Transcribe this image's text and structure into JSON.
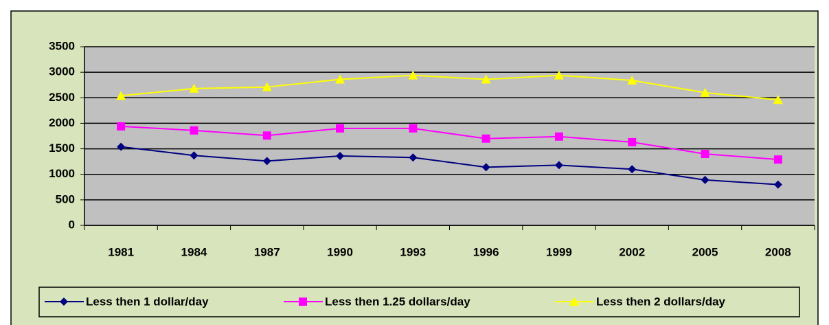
{
  "chart_data": {
    "type": "line",
    "categories": [
      "1981",
      "1984",
      "1987",
      "1990",
      "1993",
      "1996",
      "1999",
      "2002",
      "2005",
      "2008"
    ],
    "series": [
      {
        "name": "Less then 1 dollar/day",
        "color": "#000080",
        "marker": "diamond",
        "values": [
          1540,
          1370,
          1260,
          1360,
          1330,
          1140,
          1180,
          1100,
          890,
          800
        ]
      },
      {
        "name": "Less then 1.25 dollars/day",
        "color": "#ff00ff",
        "marker": "square",
        "values": [
          1940,
          1860,
          1760,
          1900,
          1900,
          1700,
          1740,
          1630,
          1400,
          1290
        ]
      },
      {
        "name": "Less then 2 dollars/day",
        "color": "#ffff00",
        "marker": "triangle",
        "values": [
          2540,
          2680,
          2710,
          2860,
          2940,
          2860,
          2940,
          2840,
          2600,
          2460
        ]
      }
    ],
    "ylim": [
      0,
      3500
    ],
    "yticks": [
      0,
      500,
      1000,
      1500,
      2000,
      2500,
      3000,
      3500
    ],
    "grid": true,
    "legend": "bottom"
  }
}
